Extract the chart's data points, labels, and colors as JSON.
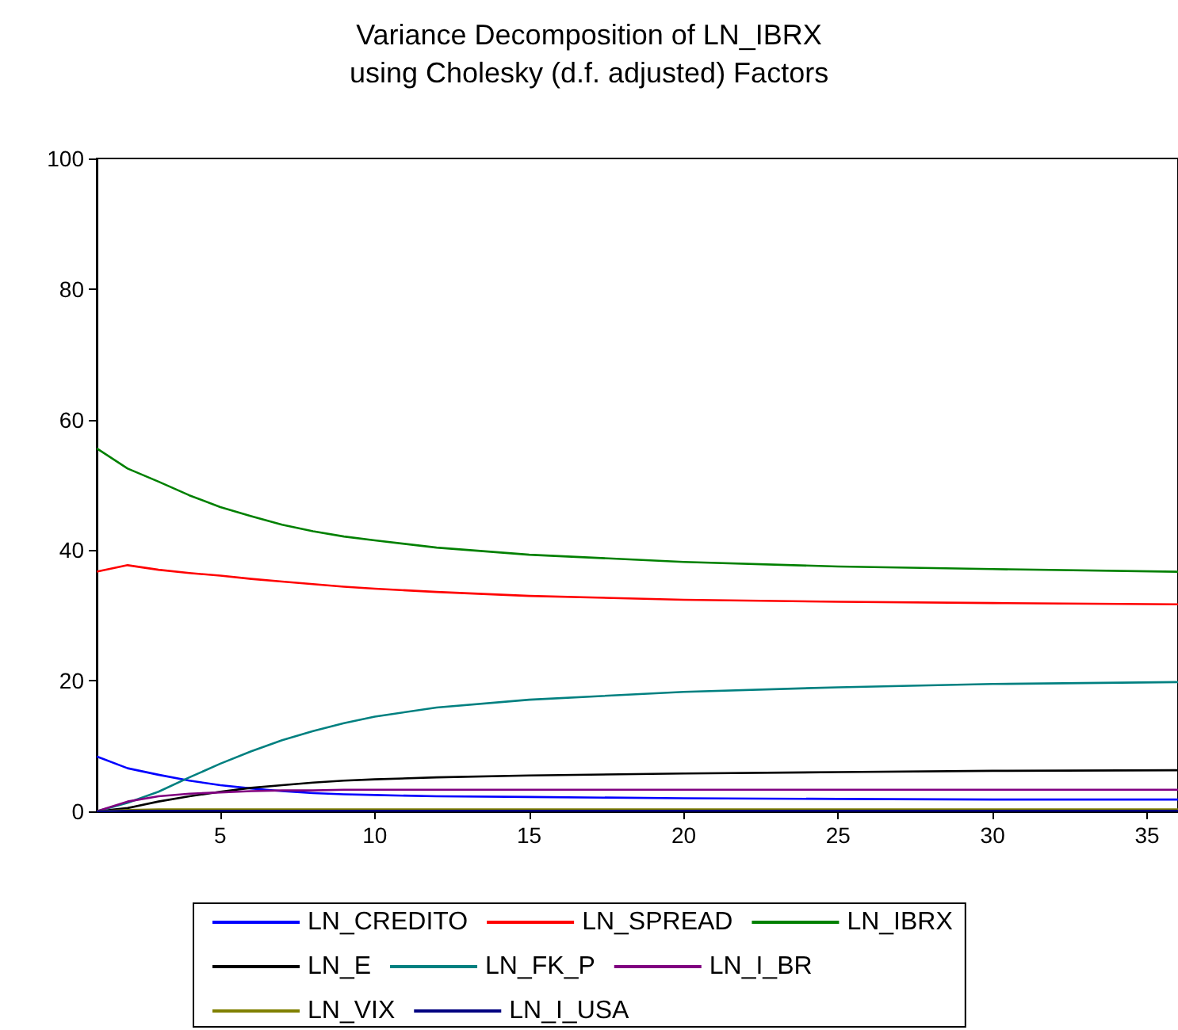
{
  "chart_data": {
    "type": "line",
    "title": "Variance Decomposition of LN_IBRX",
    "subtitle": "using Cholesky (d.f. adjusted) Factors",
    "x": [
      1,
      2,
      3,
      4,
      5,
      6,
      7,
      8,
      9,
      10,
      12,
      15,
      20,
      25,
      30,
      36
    ],
    "series": [
      {
        "name": "LN_CREDITO",
        "color": "#0000ff",
        "values": [
          8.4,
          6.6,
          5.6,
          4.7,
          4.0,
          3.5,
          3.1,
          2.8,
          2.6,
          2.5,
          2.3,
          2.2,
          2.0,
          1.9,
          1.8,
          1.8
        ]
      },
      {
        "name": "LN_SPREAD",
        "color": "#ff0000",
        "values": [
          36.7,
          37.7,
          37.0,
          36.5,
          36.1,
          35.6,
          35.2,
          34.8,
          34.4,
          34.1,
          33.6,
          33.0,
          32.4,
          32.1,
          31.9,
          31.7
        ]
      },
      {
        "name": "LN_IBRX",
        "color": "#008000",
        "values": [
          55.6,
          52.5,
          50.5,
          48.4,
          46.6,
          45.2,
          43.9,
          42.9,
          42.1,
          41.5,
          40.4,
          39.3,
          38.2,
          37.5,
          37.1,
          36.7
        ]
      },
      {
        "name": "LN_E",
        "color": "#000000",
        "values": [
          0,
          0.5,
          1.5,
          2.3,
          3.0,
          3.6,
          4.0,
          4.4,
          4.7,
          4.9,
          5.2,
          5.5,
          5.8,
          6.0,
          6.2,
          6.3
        ]
      },
      {
        "name": "LN_FK_P",
        "color": "#008080",
        "values": [
          0,
          1.3,
          3.0,
          5.2,
          7.3,
          9.2,
          10.9,
          12.3,
          13.5,
          14.5,
          15.9,
          17.1,
          18.3,
          19.0,
          19.5,
          19.8
        ]
      },
      {
        "name": "LN_I_BR",
        "color": "#800080",
        "values": [
          0,
          1.5,
          2.3,
          2.7,
          2.9,
          3.1,
          3.2,
          3.2,
          3.3,
          3.3,
          3.3,
          3.3,
          3.3,
          3.3,
          3.3,
          3.3
        ]
      },
      {
        "name": "LN_VIX",
        "color": "#808000",
        "values": [
          0,
          0.2,
          0.3,
          0.3,
          0.3,
          0.3,
          0.3,
          0.3,
          0.3,
          0.3,
          0.3,
          0.3,
          0.3,
          0.3,
          0.3,
          0.3
        ]
      },
      {
        "name": "LN_I_USA",
        "color": "#000080",
        "values": [
          0,
          0.1,
          0.1,
          0.1,
          0.1,
          0.1,
          0.1,
          0.1,
          0.1,
          0.1,
          0.1,
          0.1,
          0.1,
          0.1,
          0.1,
          0.1
        ]
      }
    ],
    "xlim": [
      1,
      36
    ],
    "xticks": [
      5,
      10,
      15,
      20,
      25,
      30,
      35
    ],
    "ylim": [
      0,
      100
    ],
    "yticks": [
      0,
      20,
      40,
      60,
      80,
      100
    ],
    "grid": false,
    "legend": "bottom",
    "marker": "none",
    "line_style": "solid"
  }
}
